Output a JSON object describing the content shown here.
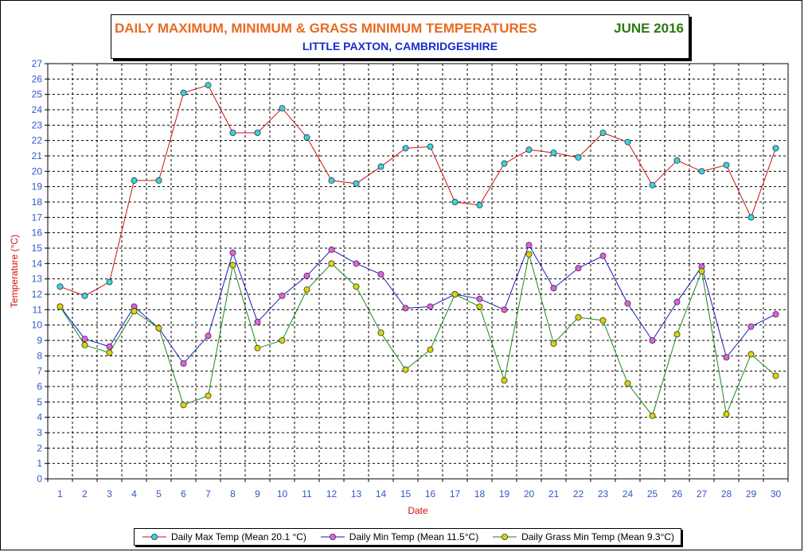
{
  "title": {
    "main": "DAILY MAXIMUM, MINIMUM & GRASS MINIMUM TEMPERATURES",
    "month": "JUNE 2016",
    "subtitle": "LITTLE PAXTON, CAMBRIDGESHIRE"
  },
  "colors": {
    "title_main": "#e86a22",
    "title_month": "#2a7a10",
    "subtitle": "#1a2ad0",
    "axis_labels": "#3355cc",
    "ylabel": "#d01010",
    "xlabel": "#d01010"
  },
  "chart_data": {
    "type": "line",
    "xlabel": "Date",
    "ylabel": "Temperature (°C)",
    "ylim": [
      0,
      27
    ],
    "grid": true,
    "legend_position": "bottom",
    "x": [
      1,
      2,
      3,
      4,
      5,
      6,
      7,
      8,
      9,
      10,
      11,
      12,
      13,
      14,
      15,
      16,
      17,
      18,
      19,
      20,
      21,
      22,
      23,
      24,
      25,
      26,
      27,
      28,
      29,
      30
    ],
    "series": [
      {
        "name": "Daily Max Temp (Mean 20.1 °C)",
        "line_color": "#d01010",
        "marker_color": "#33d6e0",
        "values": [
          12.5,
          11.9,
          12.8,
          19.4,
          19.4,
          25.1,
          25.6,
          22.5,
          22.5,
          24.1,
          22.2,
          19.4,
          19.2,
          20.3,
          21.5,
          21.6,
          18.0,
          17.8,
          20.5,
          21.4,
          21.2,
          20.9,
          22.5,
          21.9,
          19.1,
          20.7,
          20.0,
          20.4,
          17.0,
          21.5
        ]
      },
      {
        "name": "Daily Min Temp (Mean 11.5°C)",
        "line_color": "#1a1ab8",
        "marker_color": "#e060e0",
        "values": [
          11.2,
          9.1,
          8.6,
          11.2,
          9.8,
          7.5,
          9.3,
          14.7,
          10.2,
          11.9,
          13.2,
          14.9,
          14.0,
          13.3,
          11.1,
          11.2,
          12.0,
          11.7,
          11.0,
          15.2,
          12.4,
          13.7,
          14.5,
          11.4,
          9.0,
          11.5,
          13.8,
          7.9,
          9.9,
          10.7
        ]
      },
      {
        "name": "Daily Grass Min Temp (Mean 9.3°C)",
        "line_color": "#1a8a1a",
        "marker_color": "#d8d800",
        "values": [
          11.2,
          8.7,
          8.2,
          10.9,
          9.8,
          4.8,
          5.4,
          13.9,
          8.5,
          9.0,
          12.3,
          14.0,
          12.5,
          9.5,
          7.1,
          8.4,
          12.0,
          11.2,
          6.4,
          14.6,
          8.8,
          10.5,
          10.3,
          6.2,
          4.1,
          9.4,
          13.5,
          4.2,
          8.1,
          6.7
        ]
      }
    ]
  }
}
